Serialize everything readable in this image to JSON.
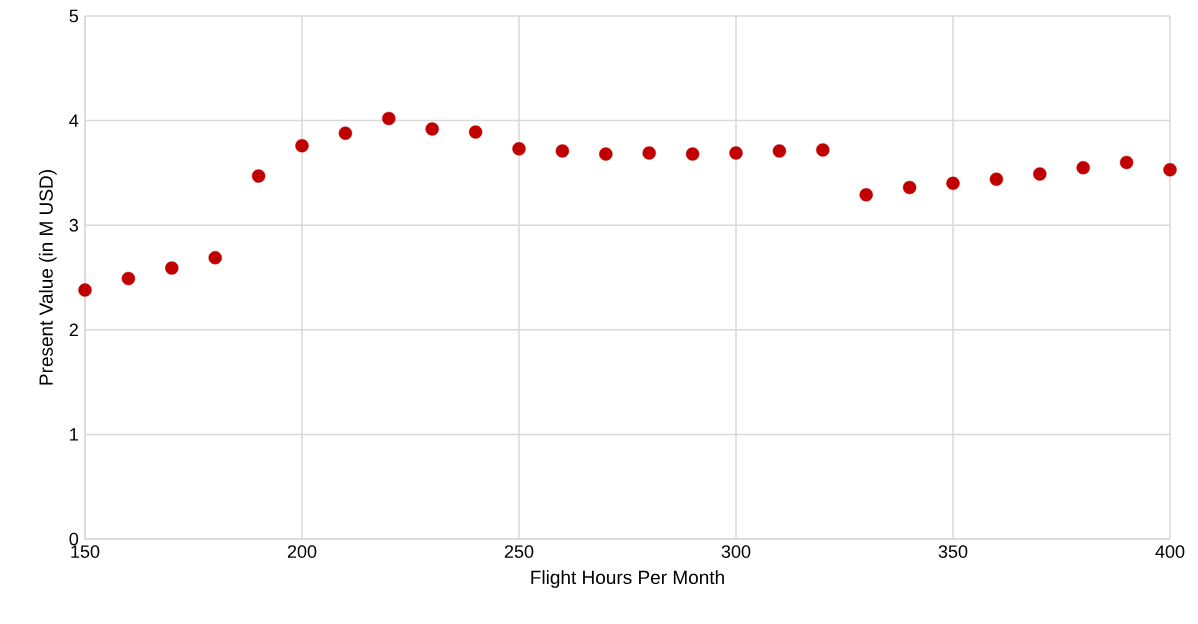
{
  "chart_data": {
    "type": "scatter",
    "xlabel": "Flight Hours Per Month",
    "ylabel": "Present Value (in M USD)",
    "x": [
      150,
      160,
      170,
      180,
      190,
      200,
      210,
      220,
      230,
      240,
      250,
      260,
      270,
      280,
      290,
      300,
      310,
      320,
      330,
      340,
      350,
      360,
      370,
      380,
      390,
      400
    ],
    "series": [
      {
        "color": "#c00000",
        "values": [
          2.38,
          2.49,
          2.59,
          2.69,
          3.47,
          3.76,
          3.88,
          4.02,
          3.92,
          3.89,
          3.73,
          3.71,
          3.68,
          3.69,
          3.68,
          3.69,
          3.71,
          3.72,
          3.29,
          3.36,
          3.4,
          3.44,
          3.49,
          3.55,
          3.6,
          3.53
        ]
      }
    ],
    "xlim": [
      150,
      400
    ],
    "ylim": [
      0,
      5
    ],
    "xticks": [
      150,
      200,
      250,
      300,
      350,
      400
    ],
    "yticks": [
      0,
      1,
      2,
      3,
      4,
      5
    ],
    "grid": true,
    "marker": "circle",
    "legend": false
  }
}
